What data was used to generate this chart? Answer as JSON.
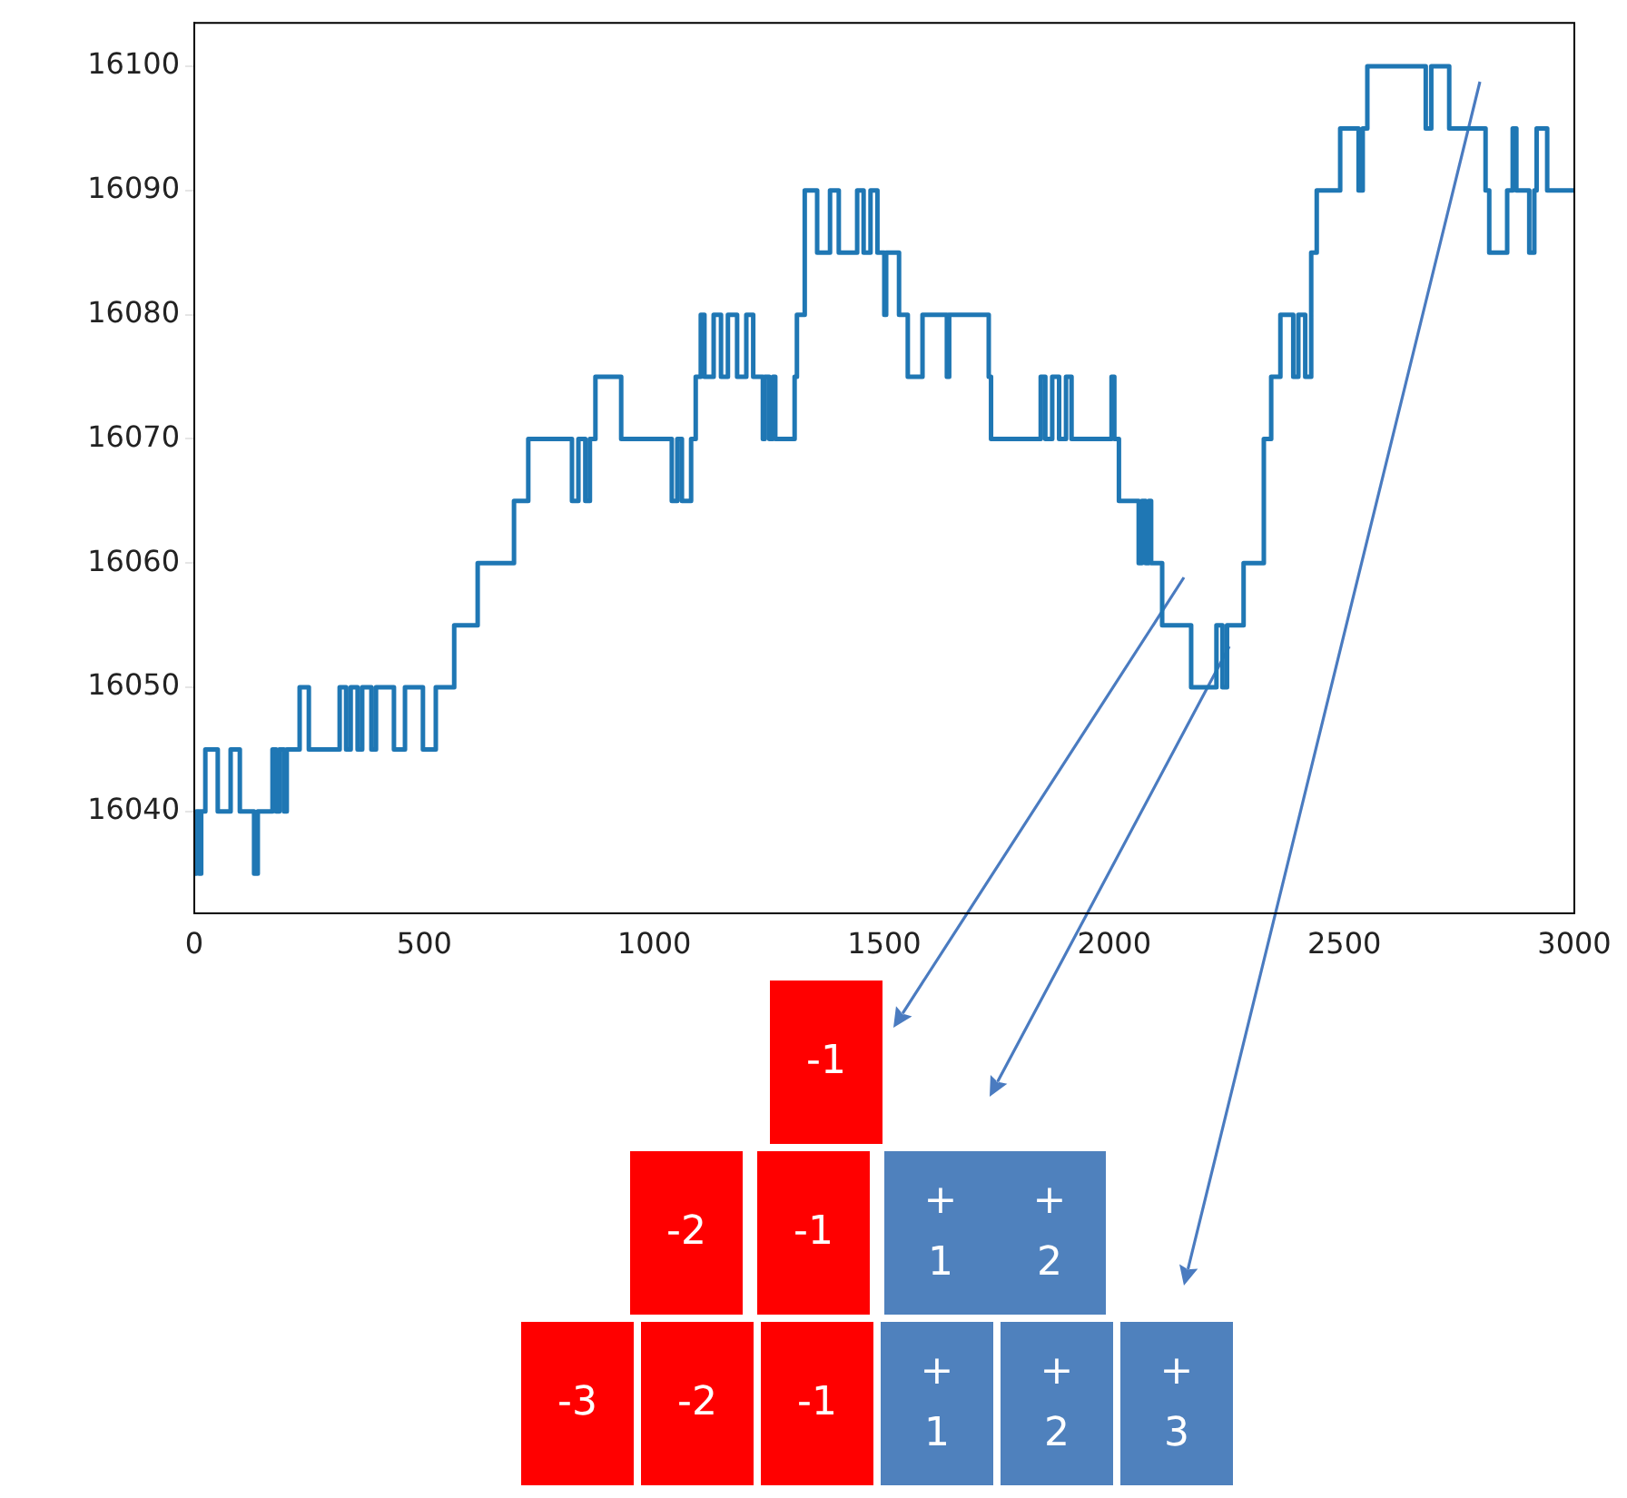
{
  "chart_data": {
    "type": "step",
    "x": [
      0,
      5,
      10,
      15,
      24,
      51,
      79,
      99,
      130,
      138,
      170,
      178,
      185,
      195,
      201,
      229,
      249,
      316,
      330,
      340,
      355,
      365,
      385,
      395,
      420,
      434,
      458,
      497,
      525,
      565,
      616,
      695,
      726,
      821,
      835,
      850,
      860,
      872,
      928,
      1038,
      1050,
      1060,
      1080,
      1090,
      1101,
      1109,
      1129,
      1145,
      1160,
      1180,
      1200,
      1215,
      1236,
      1240,
      1250,
      1258,
      1263,
      1305,
      1310,
      1327,
      1354,
      1382,
      1401,
      1441,
      1455,
      1470,
      1485,
      1500,
      1504,
      1532,
      1551,
      1583,
      1636,
      1641,
      1727,
      1732,
      1840,
      1850,
      1865,
      1880,
      1895,
      1907,
      1994,
      2000,
      2010,
      2053,
      2060,
      2068,
      2075,
      2080,
      2104,
      2167,
      2222,
      2235,
      2245,
      2281,
      2325,
      2341,
      2361,
      2389,
      2400,
      2415,
      2428,
      2440,
      2491,
      2531,
      2540,
      2550,
      2677,
      2689,
      2728,
      2807,
      2815,
      2854,
      2866,
      2874,
      2902,
      2913,
      2918,
      2941,
      2946,
      3000
    ],
    "values": [
      16040,
      16035,
      16040,
      16035,
      16040,
      16045,
      16040,
      16045,
      16040,
      16035,
      16040,
      16045,
      16040,
      16045,
      16040,
      16045,
      16050,
      16045,
      16050,
      16045,
      16050,
      16045,
      16050,
      16045,
      16050,
      16050,
      16045,
      16050,
      16045,
      16050,
      16055,
      16060,
      16065,
      16070,
      16065,
      16070,
      16065,
      16070,
      16075,
      16070,
      16065,
      16070,
      16065,
      16070,
      16075,
      16080,
      16075,
      16080,
      16075,
      16080,
      16075,
      16080,
      16075,
      16070,
      16075,
      16070,
      16075,
      16070,
      16075,
      16080,
      16090,
      16085,
      16090,
      16085,
      16090,
      16085,
      16090,
      16085,
      16080,
      16085,
      16080,
      16075,
      16080,
      16075,
      16080,
      16075,
      16070,
      16075,
      16070,
      16075,
      16070,
      16075,
      16070,
      16075,
      16070,
      16065,
      16060,
      16065,
      16060,
      16065,
      16060,
      16055,
      16050,
      16055,
      16050,
      16055,
      16060,
      16070,
      16075,
      16080,
      16075,
      16080,
      16075,
      16085,
      16090,
      16095,
      16090,
      16095,
      16100,
      16095,
      16100,
      16095,
      16090,
      16085,
      16090,
      16095,
      16090,
      16085,
      16090,
      16095,
      16090,
      16090
    ],
    "color": "#1f77b4",
    "xlim": [
      0,
      3000
    ],
    "xticks": [
      0,
      500,
      1000,
      1500,
      2000,
      2500,
      3000
    ],
    "ylim": [
      16031.8,
      16103.5
    ],
    "yticks": [
      16040,
      16050,
      16060,
      16070,
      16080,
      16090,
      16100
    ],
    "annotations": [
      "-1",
      "-2",
      "-1",
      "+ 1",
      "+ 2",
      "-3",
      "-2",
      "-1",
      "+ 1",
      "+ 2",
      "+ 3"
    ]
  }
}
